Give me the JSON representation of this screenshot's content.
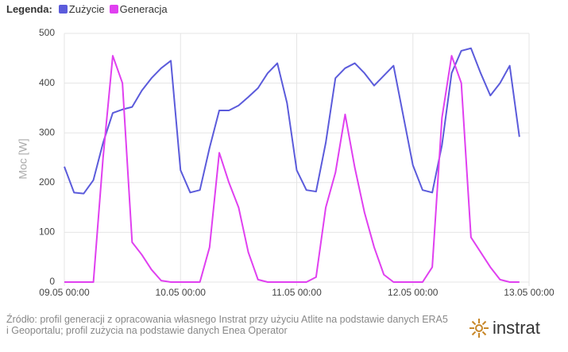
{
  "chart_data": {
    "type": "line",
    "legend_title": "Legenda:",
    "y_label": "Moc [W]",
    "x": [
      0,
      2,
      4,
      6,
      8,
      10,
      12,
      14,
      16,
      18,
      20,
      22,
      24,
      26,
      28,
      30,
      32,
      34,
      36,
      38,
      40,
      42,
      44,
      46,
      48,
      50,
      52,
      54,
      56,
      58,
      60,
      62,
      64,
      66,
      68,
      70,
      72,
      74,
      76,
      78,
      80,
      82,
      84,
      86,
      88,
      90,
      92,
      94
    ],
    "series": [
      {
        "name": "Zużycie",
        "color": "#5b5bdb",
        "values": [
          232,
          180,
          178,
          205,
          280,
          340,
          347,
          352,
          385,
          410,
          430,
          445,
          225,
          180,
          185,
          270,
          345,
          345,
          355,
          372,
          390,
          420,
          440,
          360,
          225,
          185,
          182,
          280,
          410,
          430,
          440,
          420,
          395,
          415,
          435,
          335,
          235,
          185,
          180,
          275,
          420,
          465,
          470,
          420,
          375,
          400,
          435,
          292
        ]
      },
      {
        "name": "Generacja",
        "color": "#e040f0",
        "values": [
          0,
          0,
          0,
          0,
          250,
          455,
          400,
          80,
          55,
          25,
          3,
          0,
          0,
          0,
          0,
          70,
          260,
          200,
          150,
          60,
          5,
          0,
          0,
          0,
          0,
          0,
          10,
          150,
          220,
          337,
          230,
          140,
          70,
          15,
          0,
          0,
          0,
          0,
          30,
          330,
          455,
          400,
          90,
          60,
          30,
          5,
          0,
          0
        ]
      }
    ],
    "xlim": [
      0,
      96
    ],
    "xticks": [
      {
        "value": 0,
        "label": "09.05 00:00"
      },
      {
        "value": 24,
        "label": "10.05 00:00"
      },
      {
        "value": 48,
        "label": "11.05 00:00"
      },
      {
        "value": 72,
        "label": "12.05 00:00"
      },
      {
        "value": 96,
        "label": "13.05 00:00"
      }
    ],
    "ylim": [
      0,
      500
    ],
    "yticks": [
      0,
      100,
      200,
      300,
      400,
      500
    ],
    "grid": true,
    "source": "Źródło: profil generacji z opracowania własnego Instrat przy użyciu Atlite na podstawie danych ERA5 i Geoportalu; profil zużycia na podstawie danych Enea Operator",
    "logo": "instrat"
  }
}
